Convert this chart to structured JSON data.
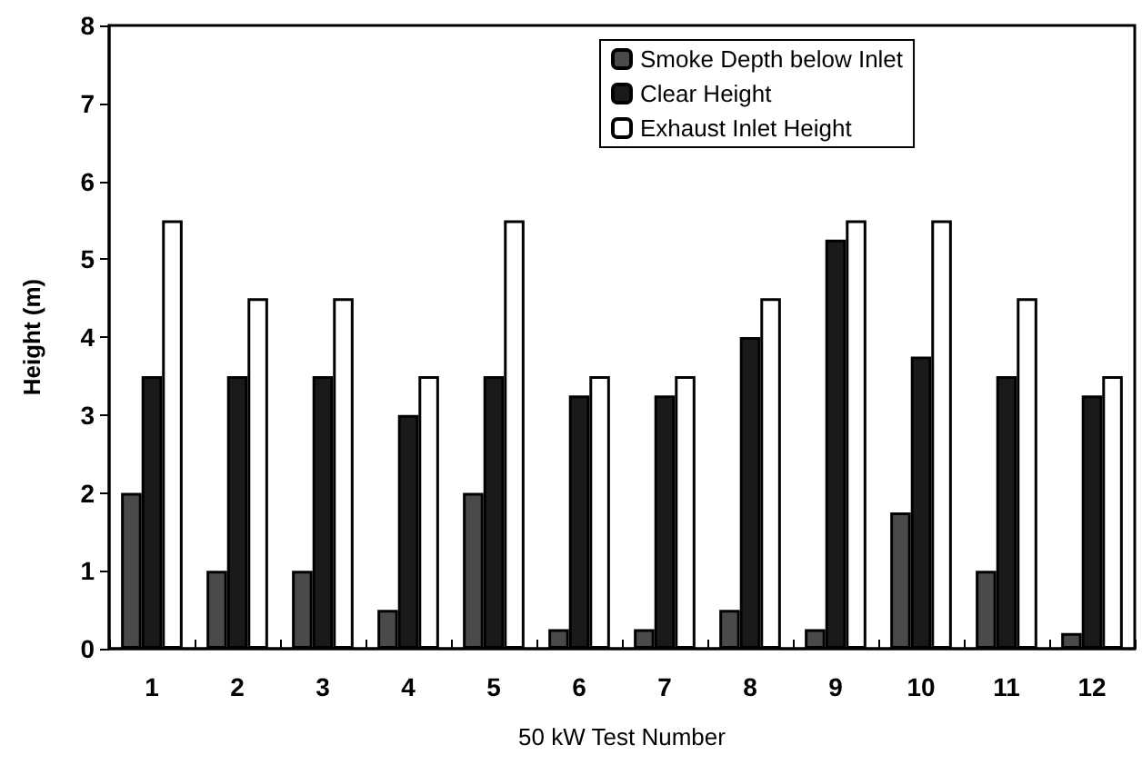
{
  "chart_data": {
    "type": "bar",
    "xlabel": "50 kW Test Number",
    "ylabel": "Height (m)",
    "categories": [
      "1",
      "2",
      "3",
      "4",
      "5",
      "6",
      "7",
      "8",
      "9",
      "10",
      "11",
      "12"
    ],
    "series": [
      {
        "name": "Smoke Depth below Inlet",
        "color": "#4a4a4a",
        "values": [
          2,
          1,
          1,
          0.5,
          2,
          0.25,
          0.25,
          0.5,
          0.25,
          1.75,
          1,
          0.2
        ]
      },
      {
        "name": "Clear Height",
        "color": "#1a1a1a",
        "values": [
          3.5,
          3.5,
          3.5,
          3,
          3.5,
          3.25,
          3.25,
          4,
          5.25,
          3.75,
          3.5,
          3.25
        ]
      },
      {
        "name": "Exhaust Inlet Height",
        "color": "#ffffff",
        "values": [
          5.5,
          4.5,
          4.5,
          3.5,
          5.5,
          3.5,
          3.5,
          4.5,
          5.5,
          5.5,
          4.5,
          3.5
        ]
      }
    ],
    "ylim": [
      0,
      8
    ],
    "yticks": [
      0,
      1,
      2,
      3,
      4,
      5,
      6,
      7,
      8
    ],
    "grid": false,
    "legend": "top"
  }
}
